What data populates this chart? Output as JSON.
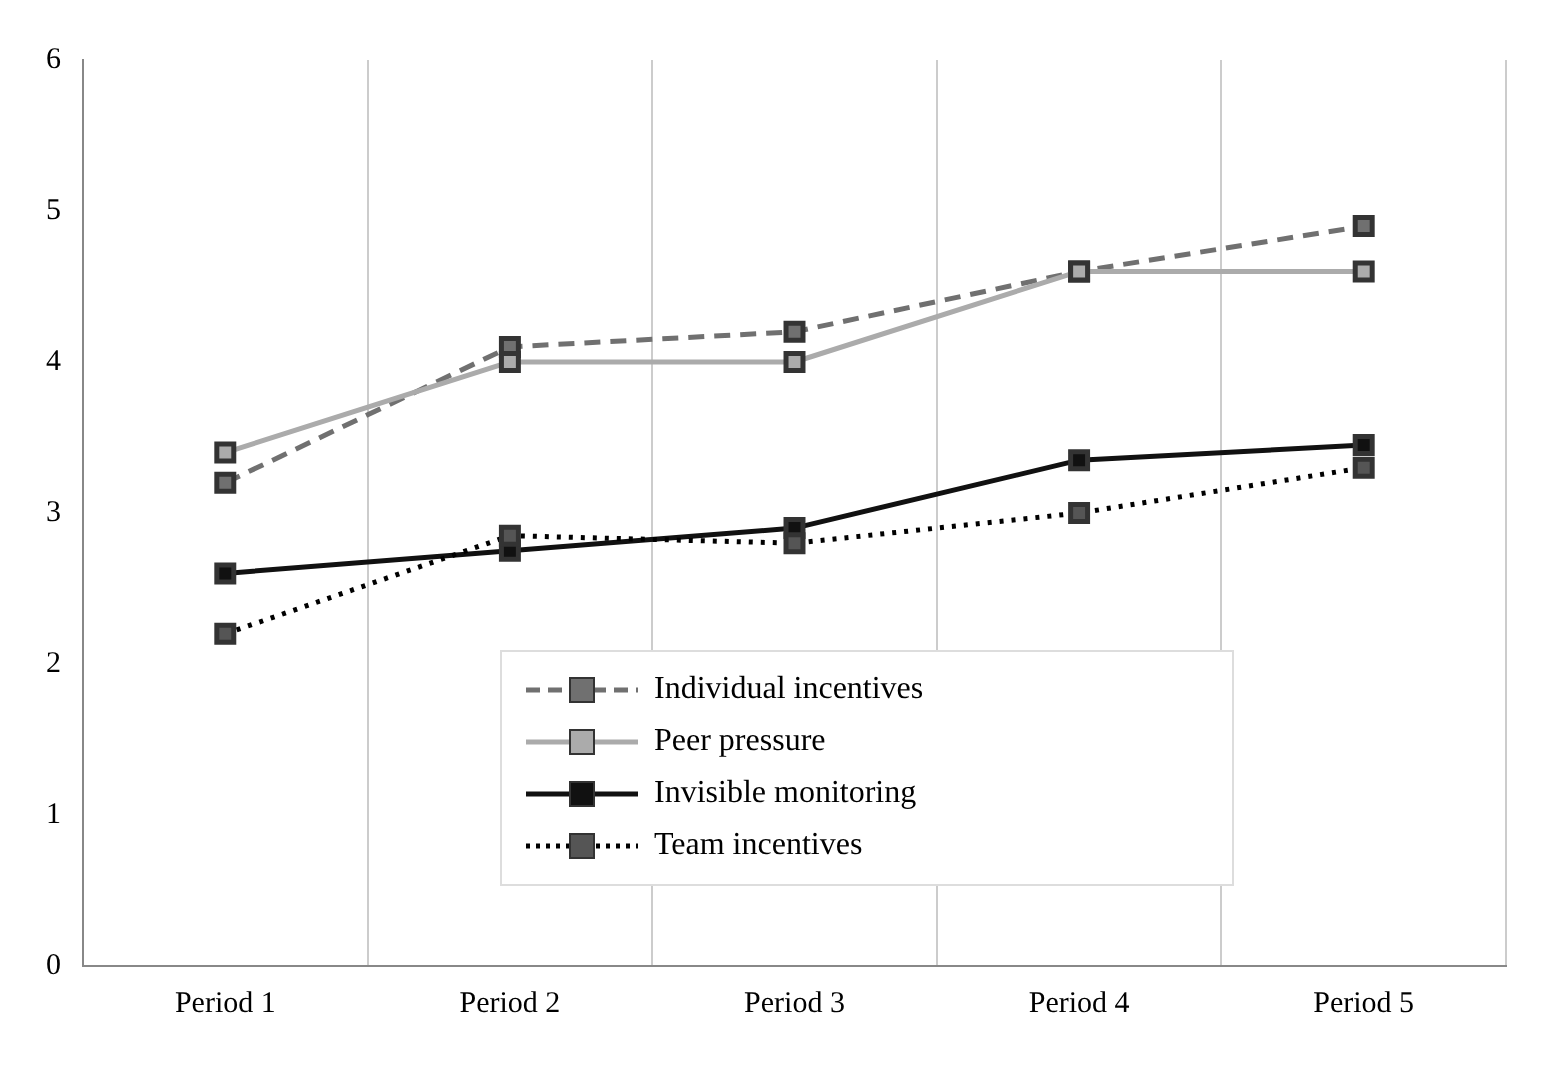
{
  "chart_data": {
    "type": "line",
    "categories": [
      "Period 1",
      "Period 2",
      "Period 3",
      "Period 4",
      "Period 5"
    ],
    "series": [
      {
        "name": "Individual incentives",
        "color": "#707070",
        "line_style": "dashed",
        "values": [
          3.2,
          4.1,
          4.2,
          4.6,
          4.9
        ]
      },
      {
        "name": "Peer pressure",
        "color": "#ababab",
        "line_style": "solid",
        "values": [
          3.4,
          4.0,
          4.0,
          4.6,
          4.6
        ]
      },
      {
        "name": "Invisible monitoring",
        "color": "#111111",
        "line_style": "solid",
        "values": [
          2.6,
          2.75,
          2.9,
          3.35,
          3.45
        ]
      },
      {
        "name": "Team incentives",
        "color": "#555555",
        "line_style": "dotted",
        "values": [
          2.2,
          2.85,
          2.8,
          3.0,
          3.3
        ]
      }
    ],
    "ylim": [
      0,
      6
    ],
    "yticks": [
      0,
      1,
      2,
      3,
      4,
      5,
      6
    ],
    "grid": "x",
    "legend": "bottom",
    "marker": "square"
  }
}
